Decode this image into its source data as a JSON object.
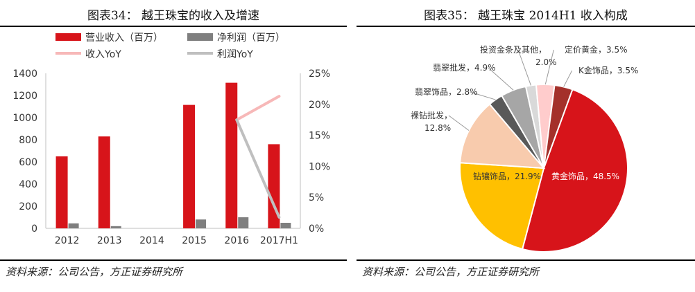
{
  "left": {
    "title": "图表34：  越王珠宝的收入及增速",
    "source": "资料来源：公司公告，方正证券研究所"
  },
  "right": {
    "title": "图表35：  越王珠宝 2014H1 收入构成",
    "source": "资料来源：公司公告，方正证券研究所"
  },
  "chart_data": [
    {
      "type": "bar",
      "title": "越王珠宝的收入及增速",
      "categories": [
        "2012",
        "2013",
        "2014",
        "2015",
        "2016",
        "2017H1"
      ],
      "ylim": [
        0,
        1400
      ],
      "yticks": [
        "0",
        "200",
        "400",
        "600",
        "800",
        "1000",
        "1200",
        "1400"
      ],
      "y2lim": [
        0,
        25
      ],
      "y2ticks": [
        "0%",
        "5%",
        "10%",
        "15%",
        "20%",
        "25%"
      ],
      "series": [
        {
          "name": "营业收入（百万）",
          "kind": "bar",
          "axis": "left",
          "color": "#d7141a",
          "values": [
            650,
            830,
            null,
            1115,
            1315,
            760
          ]
        },
        {
          "name": "净利润（百万）",
          "kind": "bar",
          "axis": "left",
          "color": "#7f7f7f",
          "values": [
            45,
            20,
            null,
            80,
            100,
            50
          ]
        },
        {
          "name": "收入YoY",
          "kind": "line",
          "axis": "right",
          "color": "#f7b8b8",
          "values": [
            null,
            null,
            null,
            null,
            17.5,
            21.3
          ]
        },
        {
          "name": "利润YoY",
          "kind": "line",
          "axis": "right",
          "color": "#bfbfbf",
          "values": [
            null,
            null,
            null,
            null,
            17.5,
            1.8
          ]
        }
      ],
      "legend": "top"
    },
    {
      "type": "pie",
      "title": "越王珠宝 2014H1 收入构成",
      "slices": [
        {
          "label": "黄金饰品",
          "value": 48.5,
          "text": "黄金饰品，48.5%",
          "color": "#d7141a"
        },
        {
          "label": "钻镶饰品",
          "value": 21.9,
          "text": "钻镶饰品，21.9%",
          "color": "#ffc000"
        },
        {
          "label": "裸钻批发",
          "value": 12.8,
          "text": "裸钻批发，",
          "text2": "12.8%",
          "color": "#f8cbad"
        },
        {
          "label": "翡翠饰品",
          "value": 2.8,
          "text": "翡翠饰品，2.8%",
          "color": "#595959"
        },
        {
          "label": "翡翠批发",
          "value": 4.9,
          "text": "翡翠批发，4.9%",
          "color": "#a6a6a6"
        },
        {
          "label": "投资金条及其他",
          "value": 2.0,
          "text": "投资金条及其他，",
          "text2": "2.0%",
          "color": "#d9d9d9"
        },
        {
          "label": "定价黄金",
          "value": 3.5,
          "text": "定价黄金，3.5%",
          "color": "#ffcccc"
        },
        {
          "label": "K金饰品",
          "value": 3.5,
          "text": "K金饰品，3.5%",
          "color": "#a4302a"
        }
      ]
    }
  ]
}
